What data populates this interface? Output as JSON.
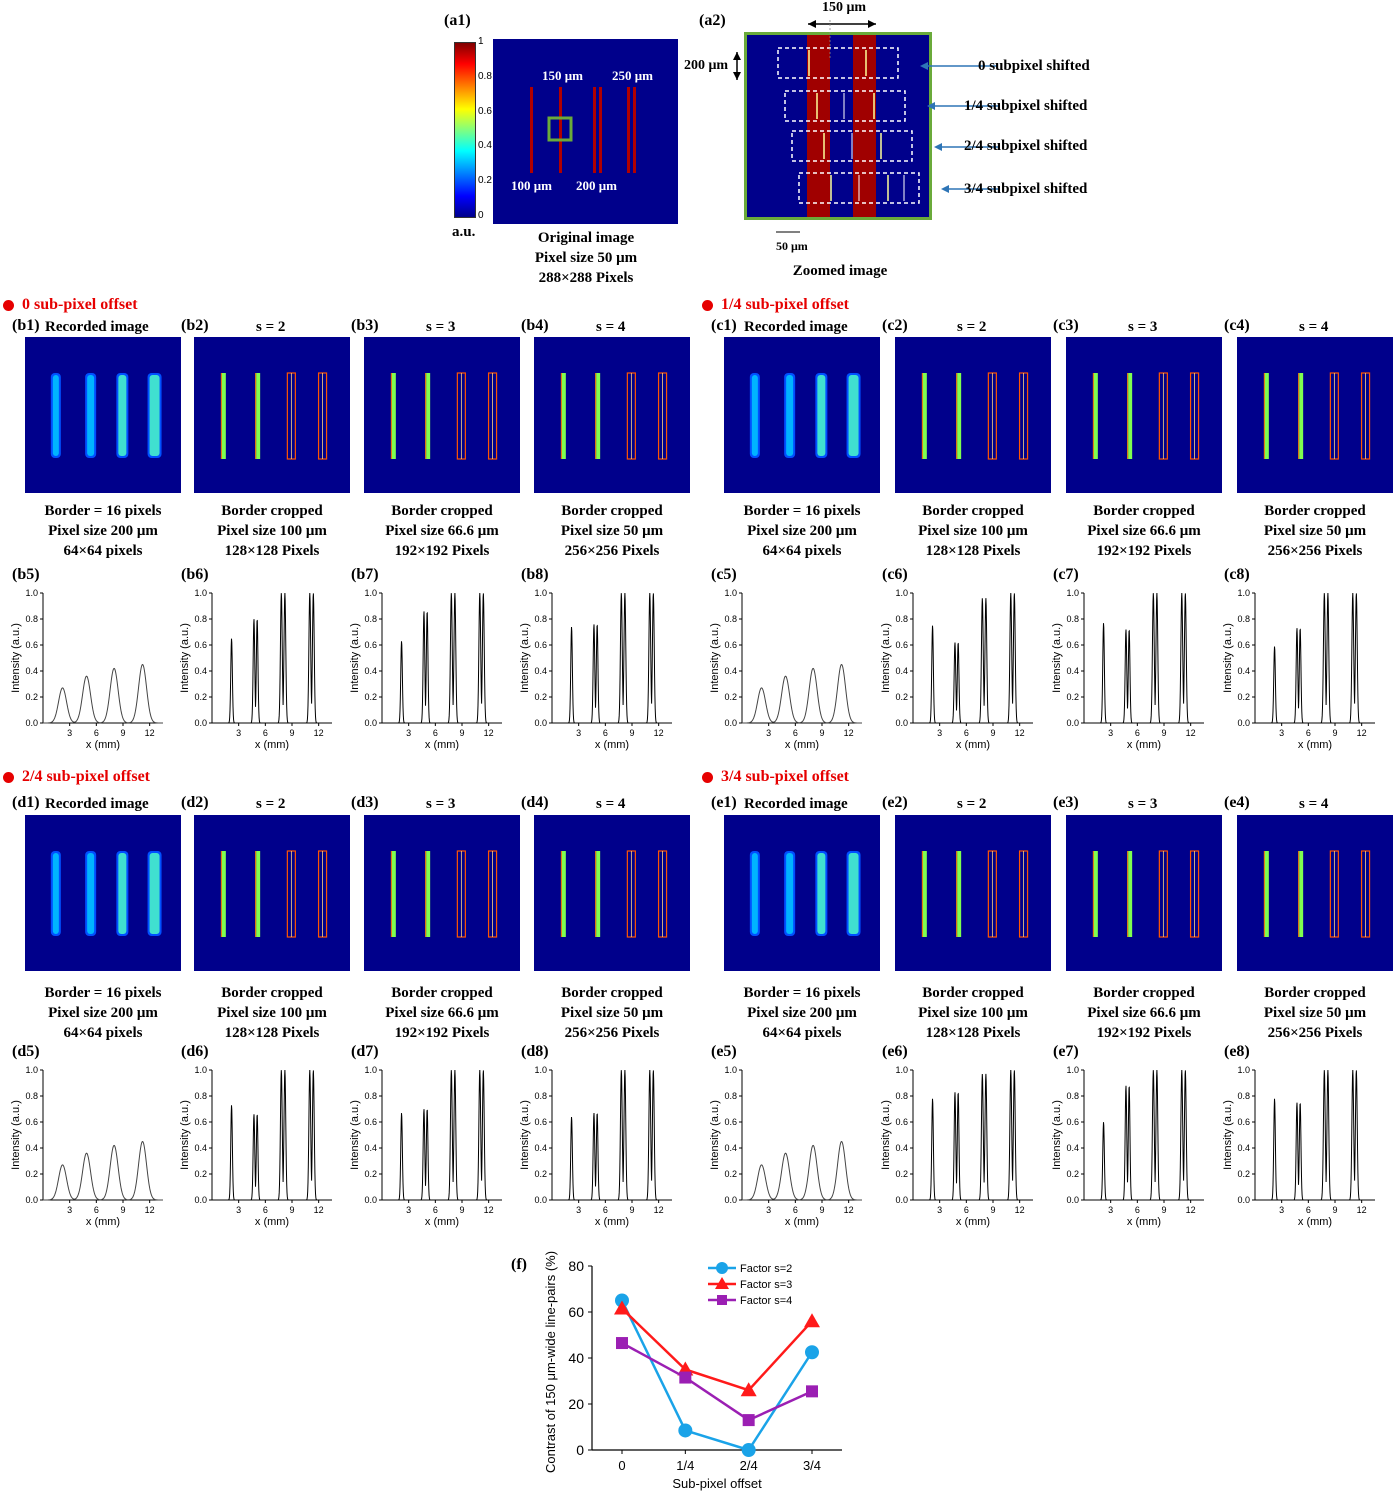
{
  "top": {
    "a1": {
      "label": "(a1)",
      "colorbar_ticks": [
        "1",
        "0.8",
        "0.6",
        "0.4",
        "0.2",
        "0"
      ],
      "colorbar_unit": "a.u.",
      "annotations": [
        "150 μm",
        "250 μm",
        "100 μm",
        "200 μm"
      ],
      "caption": [
        "Original image",
        "Pixel size 50 μm",
        "288×288 Pixels"
      ]
    },
    "a2": {
      "label": "(a2)",
      "dim_top": "150 μm",
      "dim_left": "200 μm",
      "dim_bottom": "50 μm",
      "caption": "Zoomed image",
      "shift_labels": [
        "0 subpixel shifted",
        "1/4 subpixel shifted",
        "2/4 subpixel shifted",
        "3/4 subpixel shifted"
      ]
    }
  },
  "groups": [
    {
      "letter": "b",
      "heading": "0 sub-pixel offset",
      "panel_labels": [
        "(b1)",
        "(b2)",
        "(b3)",
        "(b4)",
        "(b5)",
        "(b6)",
        "(b7)",
        "(b8)"
      ],
      "titles": [
        "Recorded   image",
        "s = 2",
        "s = 3",
        "s = 4"
      ],
      "captions": [
        [
          "Border = 16 pixels",
          "Pixel size 200 μm",
          "64×64 pixels"
        ],
        [
          "Border cropped",
          "Pixel size 100 μm",
          "128×128 Pixels"
        ],
        [
          "Border cropped",
          "Pixel size 66.6 μm",
          "192×192 Pixels"
        ],
        [
          "Border cropped",
          "Pixel size 50 μm",
          "256×256 Pixels"
        ]
      ]
    },
    {
      "letter": "c",
      "heading": "1/4 sub-pixel offset",
      "panel_labels": [
        "(c1)",
        "(c2)",
        "(c3)",
        "(c4)",
        "(c5)",
        "(c6)",
        "(c7)",
        "(c8)"
      ],
      "titles": [
        "Recorded   image",
        "s = 2",
        "s = 3",
        "s = 4"
      ],
      "captions": [
        [
          "Border = 16 pixels",
          "Pixel size 200 μm",
          "64×64 pixels"
        ],
        [
          "Border cropped",
          "Pixel size 100 μm",
          "128×128 Pixels"
        ],
        [
          "Border cropped",
          "Pixel size 66.6 μm",
          "192×192 Pixels"
        ],
        [
          "Border cropped",
          "Pixel size 50 μm",
          "256×256 Pixels"
        ]
      ]
    },
    {
      "letter": "d",
      "heading": "2/4 sub-pixel offset",
      "panel_labels": [
        "(d1)",
        "(d2)",
        "(d3)",
        "(d4)",
        "(d5)",
        "(d6)",
        "(d7)",
        "(d8)"
      ],
      "titles": [
        "Recorded   image",
        "s = 2",
        "s = 3",
        "s = 4"
      ],
      "captions": [
        [
          "Border = 16 pixels",
          "Pixel size 200 μm",
          "64×64 pixels"
        ],
        [
          "Border cropped",
          "Pixel size 100 μm",
          "128×128 Pixels"
        ],
        [
          "Border cropped",
          "Pixel size 66.6 μm",
          "192×192 Pixels"
        ],
        [
          "Border cropped",
          "Pixel size 50 μm",
          "256×256 Pixels"
        ]
      ]
    },
    {
      "letter": "e",
      "heading": "3/4 sub-pixel offset",
      "panel_labels": [
        "(e1)",
        "(e2)",
        "(e3)",
        "(e4)",
        "(e5)",
        "(e6)",
        "(e7)",
        "(e8)"
      ],
      "titles": [
        "Recorded   image",
        "s = 2",
        "s = 3",
        "s = 4"
      ],
      "captions": [
        [
          "Border = 16 pixels",
          "Pixel size 200 μm",
          "64×64 pixels"
        ],
        [
          "Border cropped",
          "Pixel size 100 μm",
          "128×128 Pixels"
        ],
        [
          "Border cropped",
          "Pixel size 66.6 μm",
          "192×192 Pixels"
        ],
        [
          "Border cropped",
          "Pixel size 50 μm",
          "256×256 Pixels"
        ]
      ]
    }
  ],
  "colors": {
    "image_bg": "#00008b",
    "heading_red": "#e60000",
    "frame_green": "#6aaa3a",
    "series": [
      "#1aa3e8",
      "#ff1a1a",
      "#9b1fb3"
    ]
  },
  "chart_data": [
    {
      "type": "line",
      "id": "profile-plots",
      "xlabel": "x (mm)",
      "ylabel": "Intensity (a.u.)",
      "xticks": [
        3,
        6,
        9,
        12
      ],
      "yticks": [
        0.0,
        0.2,
        0.4,
        0.6,
        0.8,
        1.0
      ],
      "ylim": [
        0,
        1
      ],
      "xlim": [
        0,
        13.5
      ],
      "peak_centers_mm": [
        2.2,
        4.9,
        8.0,
        11.2
      ],
      "profiles": {
        "recorded": [
          0.27,
          0.36,
          0.42,
          0.45
        ],
        "b": {
          "s2": [
            0.65,
            0.8,
            1.0,
            1.0
          ],
          "s3": [
            0.63,
            0.86,
            1.0,
            1.0
          ],
          "s4": [
            0.74,
            0.76,
            1.0,
            1.0
          ]
        },
        "c": {
          "s2": [
            0.75,
            0.62,
            0.96,
            1.0
          ],
          "s3": [
            0.77,
            0.72,
            1.0,
            1.0
          ],
          "s4": [
            0.59,
            0.73,
            1.0,
            1.0
          ]
        },
        "d": {
          "s2": [
            0.73,
            0.66,
            1.0,
            1.0
          ],
          "s3": [
            0.67,
            0.7,
            1.0,
            1.0
          ],
          "s4": [
            0.64,
            0.67,
            1.0,
            1.0
          ]
        },
        "e": {
          "s2": [
            0.78,
            0.83,
            0.97,
            1.0
          ],
          "s3": [
            0.6,
            0.88,
            1.0,
            1.0
          ],
          "s4": [
            0.78,
            0.75,
            1.0,
            1.0
          ]
        }
      }
    },
    {
      "type": "line",
      "id": "contrast-chart",
      "label": "(f)",
      "xlabel": "Sub-pixel offset",
      "ylabel": "Contrast of 150 μm-wide line-pairs (%)",
      "categories": [
        "0",
        "1/4",
        "2/4",
        "3/4"
      ],
      "ylim": [
        0,
        80
      ],
      "yticks": [
        0,
        20,
        40,
        60,
        80
      ],
      "legend": "top-right",
      "series": [
        {
          "name": "Factor s=2",
          "marker": "circle",
          "values": [
            65,
            8.5,
            0,
            42.5
          ]
        },
        {
          "name": "Factor s=3",
          "marker": "triangle",
          "values": [
            61.5,
            35,
            26,
            56
          ]
        },
        {
          "name": "Factor s=4",
          "marker": "square",
          "values": [
            46.5,
            31.5,
            13,
            25.5
          ]
        }
      ]
    }
  ]
}
